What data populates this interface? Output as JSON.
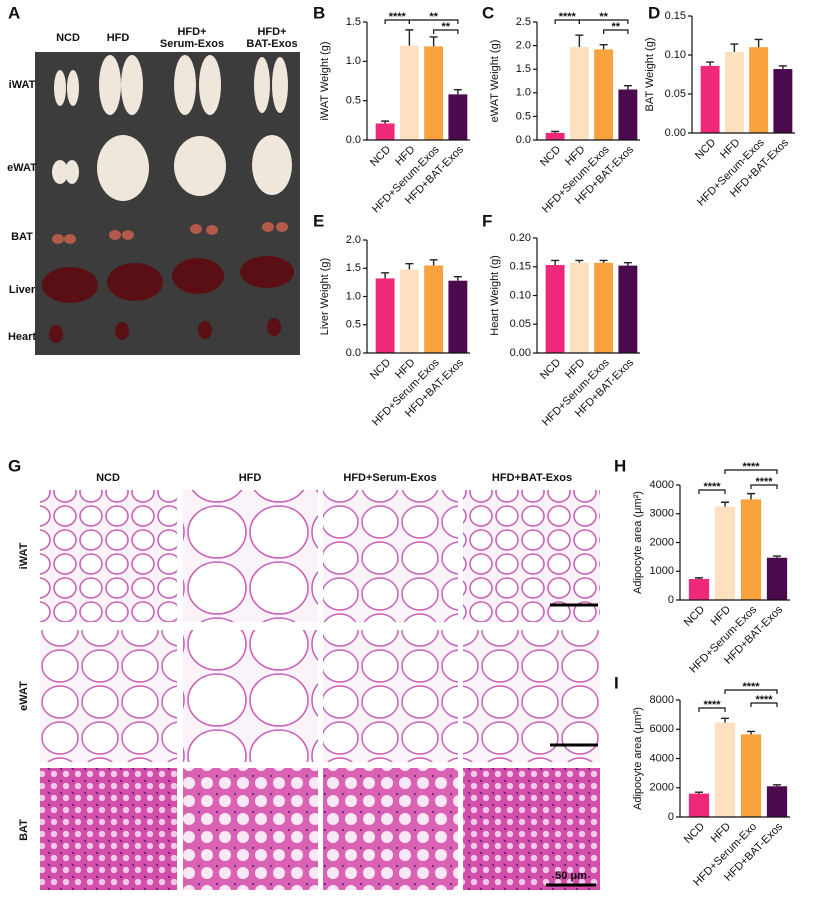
{
  "photo_panels": [
    {
      "letter": "A",
      "columns": [
        [
          "NCD"
        ],
        [
          "HFD"
        ],
        [
          "HFD+",
          "Serum-Exos"
        ],
        [
          "HFD+",
          "BAT-Exos"
        ]
      ],
      "rows": [
        "iWAT",
        "eWAT",
        "BAT",
        "Liver",
        "Heart"
      ]
    },
    {
      "letter": "G",
      "columns": [
        [
          "NCD"
        ],
        [
          "HFD"
        ],
        [
          "HFD+Serum-Exos"
        ],
        [
          "HFD+BAT-Exos"
        ]
      ],
      "rows": [
        "iWAT",
        "eWAT",
        "BAT"
      ],
      "scale_bar": "50 μm"
    }
  ],
  "chart_data": [
    {
      "type": "bar",
      "letter": "B",
      "y_label": "iWAT Weight (g)",
      "categories": [
        "NCD",
        "HFD",
        "HFD+Serum-Exos",
        "HFD+BAT-Exos"
      ],
      "values": [
        0.21,
        1.2,
        1.19,
        0.58
      ],
      "errors": [
        0.03,
        0.2,
        0.12,
        0.06
      ],
      "colors": [
        "#f0287a",
        "#fde0c0",
        "#f7a23c",
        "#4b0a4e"
      ],
      "ylim": [
        0,
        1.5
      ],
      "yticks": [
        {
          "value": 0,
          "label": "0.0"
        },
        0.5,
        {
          "value": 1,
          "label": "1.0"
        },
        1.5
      ],
      "significance": [
        {
          "label": "****",
          "from": 0,
          "to": 1
        },
        {
          "label": "**",
          "from": 1,
          "to": 3
        },
        {
          "label": "**",
          "from": 2,
          "to": 3
        }
      ]
    },
    {
      "type": "bar",
      "letter": "C",
      "y_label": "eWAT Weight (g)",
      "categories": [
        "NCD",
        "HFD",
        "HFD+Serum-Exos",
        "HFD+BAT-Exos"
      ],
      "values": [
        0.15,
        1.97,
        1.92,
        1.07
      ],
      "errors": [
        0.03,
        0.25,
        0.1,
        0.08
      ],
      "colors": [
        "#f0287a",
        "#fde0c0",
        "#f7a23c",
        "#4b0a4e"
      ],
      "ylim": [
        0,
        2.5
      ],
      "yticks": [
        {
          "value": 0,
          "label": "0.0"
        },
        0.5,
        {
          "value": 1,
          "label": "1.0"
        },
        1.5,
        {
          "value": 2,
          "label": "2.0"
        },
        2.5
      ],
      "significance": [
        {
          "label": "****",
          "from": 0,
          "to": 1
        },
        {
          "label": "**",
          "from": 1,
          "to": 3
        },
        {
          "label": "**",
          "from": 2,
          "to": 3
        }
      ]
    },
    {
      "type": "bar",
      "letter": "D",
      "y_label": "BAT Weight (g)",
      "categories": [
        "NCD",
        "HFD",
        "HFD+Serum-Exos",
        "HFD+BAT-Exos"
      ],
      "values": [
        0.086,
        0.104,
        0.11,
        0.082
      ],
      "errors": [
        0.005,
        0.01,
        0.01,
        0.004
      ],
      "colors": [
        "#f0287a",
        "#fde0c0",
        "#f7a23c",
        "#4b0a4e"
      ],
      "ylim": [
        0,
        0.15
      ],
      "yticks": [
        {
          "value": 0,
          "label": "0.00"
        },
        0.05,
        {
          "value": 0.1,
          "label": "0.10"
        },
        0.15
      ],
      "significance": []
    },
    {
      "type": "bar",
      "letter": "E",
      "y_label": "Liver Weight (g)",
      "categories": [
        "NCD",
        "HFD",
        "HFD+Serum-Exos",
        "HFD+BAT-Exos"
      ],
      "values": [
        1.32,
        1.48,
        1.55,
        1.28
      ],
      "errors": [
        0.1,
        0.1,
        0.1,
        0.07
      ],
      "colors": [
        "#f0287a",
        "#fde0c0",
        "#f7a23c",
        "#4b0a4e"
      ],
      "ylim": [
        0,
        2
      ],
      "yticks": [
        {
          "value": 0,
          "label": "0.0"
        },
        0.5,
        {
          "value": 1,
          "label": "1.0"
        },
        1.5,
        {
          "value": 2,
          "label": "2.0"
        }
      ],
      "significance": []
    },
    {
      "type": "bar",
      "letter": "F",
      "y_label": "Heart Weight (g)",
      "categories": [
        "NCD",
        "HFD",
        "HFD+Serum-Exos",
        "HFD+BAT-Exos"
      ],
      "values": [
        0.153,
        0.157,
        0.157,
        0.152
      ],
      "errors": [
        0.008,
        0.004,
        0.004,
        0.005
      ],
      "colors": [
        "#f0287a",
        "#fde0c0",
        "#f7a23c",
        "#4b0a4e"
      ],
      "ylim": [
        0,
        0.2
      ],
      "yticks": [
        {
          "value": 0,
          "label": "0.00"
        },
        0.05,
        {
          "value": 0.1,
          "label": "0.10"
        },
        0.15,
        {
          "value": 0.2,
          "label": "0.20"
        }
      ],
      "significance": []
    },
    {
      "type": "bar",
      "letter": "H",
      "y_label": "Adipocyte area (μm²)",
      "categories": [
        "NCD",
        "HFD",
        "HFD+Serum-Exos",
        "HFD+BAT-Exos"
      ],
      "values": [
        730,
        3250,
        3500,
        1470
      ],
      "errors": [
        40,
        150,
        200,
        60
      ],
      "colors": [
        "#f0287a",
        "#fde0c0",
        "#f7a23c",
        "#4b0a4e"
      ],
      "ylim": [
        0,
        4000
      ],
      "yticks": [
        0,
        1000,
        2000,
        3000,
        4000
      ],
      "significance": [
        {
          "label": "****",
          "from": 0,
          "to": 1
        },
        {
          "label": "****",
          "from": 1,
          "to": 3
        },
        {
          "label": "****",
          "from": 2,
          "to": 3
        }
      ]
    },
    {
      "type": "bar",
      "letter": "I",
      "y_label": "Adipocyte area (μm²)",
      "categories": [
        "NCD",
        "HFD",
        "HFD+Serum-Exo",
        "HFD+BAT-Exos"
      ],
      "values": [
        1600,
        6450,
        5650,
        2100
      ],
      "errors": [
        100,
        300,
        200,
        100
      ],
      "colors": [
        "#f0287a",
        "#fde0c0",
        "#f7a23c",
        "#4b0a4e"
      ],
      "ylim": [
        0,
        8000
      ],
      "yticks": [
        0,
        2000,
        4000,
        6000,
        8000
      ],
      "significance": [
        {
          "label": "****",
          "from": 0,
          "to": 1
        },
        {
          "label": "****",
          "from": 1,
          "to": 3
        },
        {
          "label": "****",
          "from": 2,
          "to": 3
        }
      ]
    }
  ]
}
